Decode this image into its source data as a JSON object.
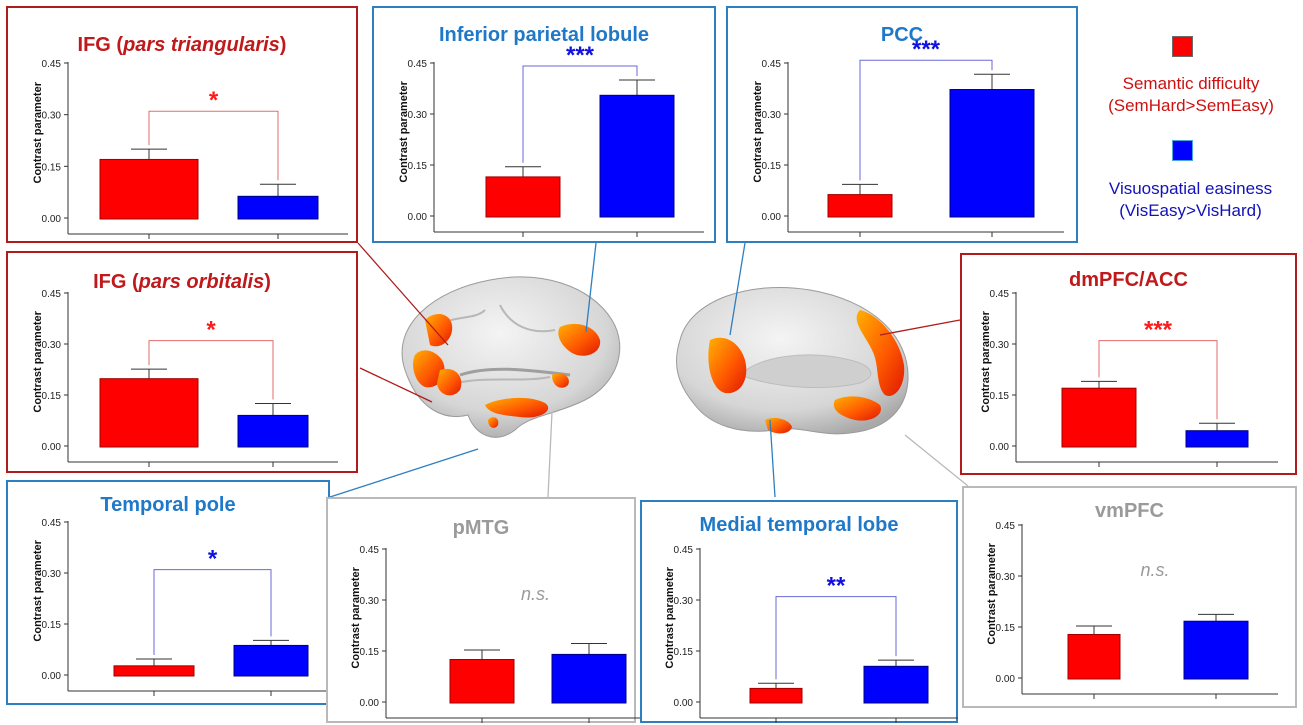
{
  "legend": {
    "semantic": {
      "label": "Semantic difficulty",
      "contrast": "(SemHard>SemEasy)",
      "color": "#ff0000",
      "text_color": "#cc1111"
    },
    "visuo": {
      "label": "Visuospatial easiness",
      "contrast": "(VisEasy>VisHard)",
      "color": "#0000ff",
      "text_color": "#1212b8"
    }
  },
  "colors": {
    "semantic_frame": "#b01c1c",
    "visuo_frame": "#2e7fc0",
    "ns_frame": "#b9b9b9",
    "semantic_title": "#c0191b",
    "visuo_title": "#1f78c8",
    "ns_title": "#9a9a9a"
  },
  "chart_data": [
    {
      "id": "ifg-tri",
      "type": "bar",
      "title": "IFG (",
      "title_italic": "pars triangularis",
      "title_end": ")",
      "ylabel": "Contrast parameter",
      "yticks": [
        "0.00",
        "0.15",
        "0.30",
        "0.45"
      ],
      "ylim": [
        0,
        0.45
      ],
      "series": [
        {
          "name": "Semantic difficulty",
          "values": [
            0.17
          ],
          "errors": [
            0.03
          ]
        },
        {
          "name": "Visuospatial easiness",
          "values": [
            0.063
          ],
          "errors": [
            0.035
          ]
        }
      ],
      "significance": "*",
      "sig_color": "red",
      "group": "semantic"
    },
    {
      "id": "ifg-orb",
      "type": "bar",
      "title": "IFG (",
      "title_italic": "pars orbitalis",
      "title_end": ")",
      "ylabel": "Contrast parameter",
      "yticks": [
        "0.00",
        "0.15",
        "0.30",
        "0.45"
      ],
      "ylim": [
        0,
        0.45
      ],
      "series": [
        {
          "name": "Semantic difficulty",
          "values": [
            0.198
          ],
          "errors": [
            0.028
          ]
        },
        {
          "name": "Visuospatial easiness",
          "values": [
            0.09
          ],
          "errors": [
            0.035
          ]
        }
      ],
      "significance": "*",
      "sig_color": "red",
      "group": "semantic"
    },
    {
      "id": "ipl",
      "type": "bar",
      "title": "Inferior parietal lobule",
      "ylabel": "Contrast parameter",
      "yticks": [
        "0.00",
        "0.15",
        "0.30",
        "0.45"
      ],
      "ylim": [
        0,
        0.45
      ],
      "series": [
        {
          "name": "Semantic difficulty",
          "values": [
            0.115
          ],
          "errors": [
            0.03
          ]
        },
        {
          "name": "Visuospatial easiness",
          "values": [
            0.355
          ],
          "errors": [
            0.045
          ]
        }
      ],
      "significance": "***",
      "sig_color": "blue",
      "group": "visuo"
    },
    {
      "id": "pcc",
      "type": "bar",
      "title": "PCC",
      "ylabel": "Contrast parameter",
      "yticks": [
        "0.00",
        "0.15",
        "0.30",
        "0.45"
      ],
      "ylim": [
        0,
        0.45
      ],
      "series": [
        {
          "name": "Semantic difficulty",
          "values": [
            0.063
          ],
          "errors": [
            0.03
          ]
        },
        {
          "name": "Visuospatial easiness",
          "values": [
            0.372
          ],
          "errors": [
            0.045
          ]
        }
      ],
      "significance": "***",
      "sig_color": "blue",
      "group": "visuo"
    },
    {
      "id": "dmpfc",
      "type": "bar",
      "title": "dmPFC/ACC",
      "ylabel": "Contrast parameter",
      "yticks": [
        "0.00",
        "0.15",
        "0.30",
        "0.45"
      ],
      "ylim": [
        0,
        0.45
      ],
      "series": [
        {
          "name": "Semantic difficulty",
          "values": [
            0.17
          ],
          "errors": [
            0.02
          ]
        },
        {
          "name": "Visuospatial easiness",
          "values": [
            0.045
          ],
          "errors": [
            0.022
          ]
        }
      ],
      "significance": "***",
      "sig_color": "red",
      "group": "semantic"
    },
    {
      "id": "tp",
      "type": "bar",
      "title": "Temporal pole",
      "ylabel": "Contrast parameter",
      "yticks": [
        "0.00",
        "0.15",
        "0.30",
        "0.45"
      ],
      "ylim": [
        0,
        0.45
      ],
      "series": [
        {
          "name": "Semantic difficulty",
          "values": [
            0.027
          ],
          "errors": [
            0.02
          ]
        },
        {
          "name": "Visuospatial easiness",
          "values": [
            0.087
          ],
          "errors": [
            0.015
          ]
        }
      ],
      "significance": "*",
      "sig_color": "blue",
      "group": "visuo"
    },
    {
      "id": "pmtg",
      "type": "bar",
      "title": "pMTG",
      "ylabel": "Contrast parameter",
      "yticks": [
        "0.00",
        "0.15",
        "0.30",
        "0.45"
      ],
      "ylim": [
        0,
        0.45
      ],
      "series": [
        {
          "name": "Semantic difficulty",
          "values": [
            0.125
          ],
          "errors": [
            0.028
          ]
        },
        {
          "name": "Visuospatial easiness",
          "values": [
            0.14
          ],
          "errors": [
            0.032
          ]
        }
      ],
      "significance": "n.s.",
      "sig_color": "grey",
      "group": "ns"
    },
    {
      "id": "mtl",
      "type": "bar",
      "title": "Medial temporal lobe",
      "ylabel": "Contrast parameter",
      "yticks": [
        "0.00",
        "0.15",
        "0.30",
        "0.45"
      ],
      "ylim": [
        0,
        0.45
      ],
      "series": [
        {
          "name": "Semantic difficulty",
          "values": [
            0.04
          ],
          "errors": [
            0.015
          ]
        },
        {
          "name": "Visuospatial easiness",
          "values": [
            0.105
          ],
          "errors": [
            0.018
          ]
        }
      ],
      "significance": "**",
      "sig_color": "blue",
      "group": "visuo"
    },
    {
      "id": "vmpfc",
      "type": "bar",
      "title": "vmPFC",
      "ylabel": "Contrast parameter",
      "yticks": [
        "0.00",
        "0.15",
        "0.30",
        "0.45"
      ],
      "ylim": [
        0,
        0.45
      ],
      "series": [
        {
          "name": "Semantic difficulty",
          "values": [
            0.128
          ],
          "errors": [
            0.025
          ]
        },
        {
          "name": "Visuospatial easiness",
          "values": [
            0.167
          ],
          "errors": [
            0.02
          ]
        }
      ],
      "significance": "n.s.",
      "sig_color": "grey",
      "group": "ns"
    }
  ]
}
